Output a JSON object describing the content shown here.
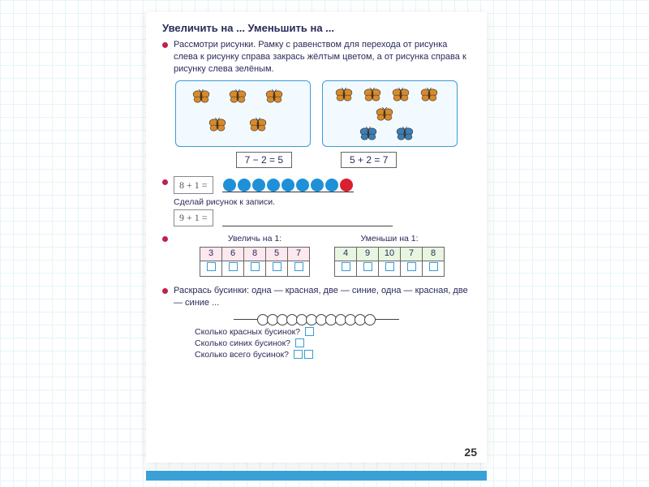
{
  "title": "Увеличить на ... Уменьшить на ...",
  "task1": {
    "text": "Рассмотри рисунки. Рамку с равенством для перехода от рисунка слева к рисунку справа закрась жёлтым цветом, а от рисунка справа к рисунку слева зелёным.",
    "left_eq": "7 − 2 = 5",
    "right_eq": "5 + 2 = 7",
    "butterfly_colors": {
      "orange": "#d88a2a",
      "blue": "#3a7fb8"
    },
    "box_border": "#3a9bd8"
  },
  "task2": {
    "expr1": "8 + 1 =",
    "beads": [
      "#1e90d8",
      "#1e90d8",
      "#1e90d8",
      "#1e90d8",
      "#1e90d8",
      "#1e90d8",
      "#1e90d8",
      "#1e90d8",
      "#d82030"
    ],
    "caption": "Сделай рисунок к записи.",
    "expr2": "9 + 1 ="
  },
  "task3": {
    "left_title": "Увеличь на 1:",
    "right_title": "Уменьши на 1:",
    "left_values": [
      "3",
      "6",
      "8",
      "5",
      "7"
    ],
    "right_values": [
      "4",
      "9",
      "10",
      "7",
      "8"
    ],
    "left_bg": "#fce8ee",
    "right_bg": "#e8f5e0"
  },
  "task4": {
    "text": "Раскрась бусинки: одна — красная, две — синие, одна — красная, две — синие ...",
    "bead_count": 12,
    "q1": "Сколько красных бусинок?",
    "q2": "Сколько синих бусинок?",
    "q3": "Сколько всего бусинок?"
  },
  "page_number": "25"
}
